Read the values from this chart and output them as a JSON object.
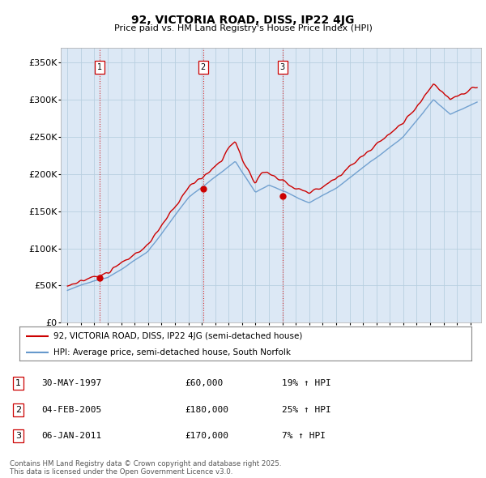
{
  "title": "92, VICTORIA ROAD, DISS, IP22 4JG",
  "subtitle": "Price paid vs. HM Land Registry's House Price Index (HPI)",
  "background_color": "#ffffff",
  "plot_bg_color": "#dce8f5",
  "grid_color": "#b8cfe0",
  "sale_dates": [
    1997.41,
    2005.09,
    2011.01
  ],
  "sale_prices": [
    60000,
    180000,
    170000
  ],
  "sale_labels": [
    "1",
    "2",
    "3"
  ],
  "legend_entries": [
    "92, VICTORIA ROAD, DISS, IP22 4JG (semi-detached house)",
    "HPI: Average price, semi-detached house, South Norfolk"
  ],
  "table_rows": [
    [
      "1",
      "30-MAY-1997",
      "£60,000",
      "19% ↑ HPI"
    ],
    [
      "2",
      "04-FEB-2005",
      "£180,000",
      "25% ↑ HPI"
    ],
    [
      "3",
      "06-JAN-2011",
      "£170,000",
      "7% ↑ HPI"
    ]
  ],
  "footer": "Contains HM Land Registry data © Crown copyright and database right 2025.\nThis data is licensed under the Open Government Licence v3.0.",
  "red_color": "#cc0000",
  "blue_color": "#6699cc",
  "vline_color": "#cc0000",
  "ylim": [
    0,
    370000
  ],
  "yticks": [
    0,
    50000,
    100000,
    150000,
    200000,
    250000,
    300000,
    350000
  ],
  "xmin": 1994.5,
  "xmax": 2025.8
}
